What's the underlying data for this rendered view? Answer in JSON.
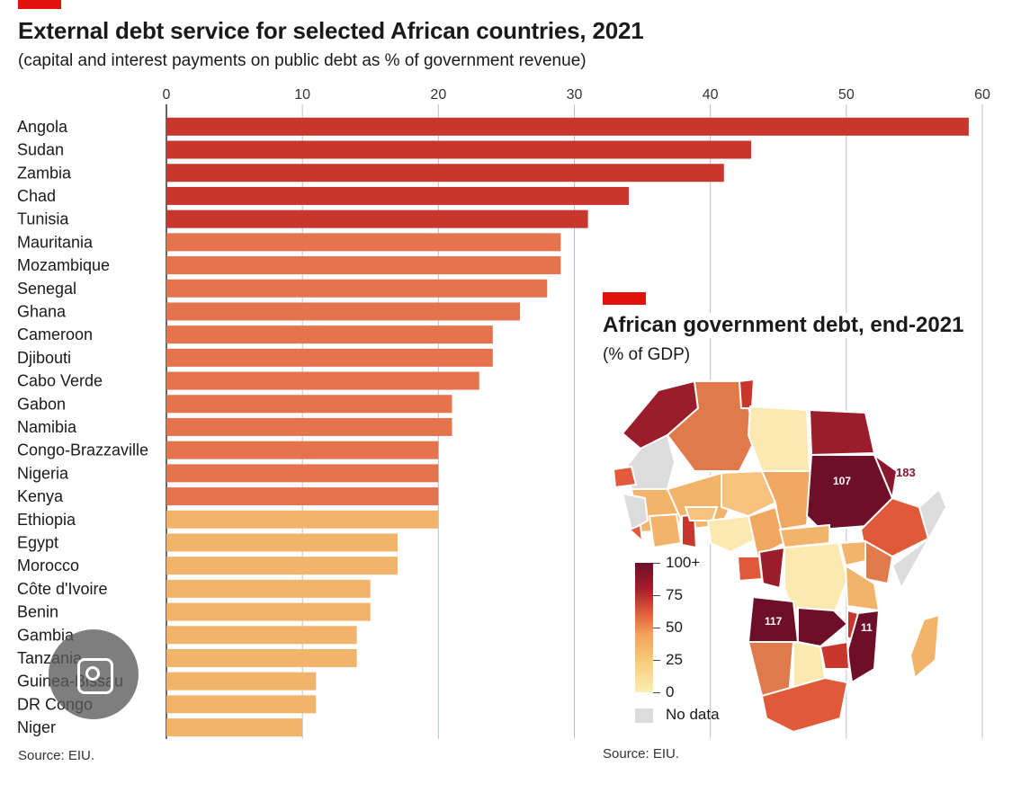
{
  "colors": {
    "tag": "#e3120b",
    "bar_high": "#c8372d",
    "bar_mid": "#e5734d",
    "bar_low": "#f2b46a",
    "grid": "#b9c3cf",
    "nodata": "#dcdcdc"
  },
  "chart_data": {
    "type": "bar",
    "orientation": "horizontal",
    "title": "External debt service for selected African countries, 2021",
    "subtitle": "(capital and interest payments on public debt as % of government revenue)",
    "xlim": [
      0,
      60
    ],
    "xticks": [
      "0",
      "10",
      "20",
      "30",
      "40",
      "50",
      "60"
    ],
    "grid": true,
    "categories": [
      "Angola",
      "Sudan",
      "Zambia",
      "Chad",
      "Tunisia",
      "Mauritania",
      "Mozambique",
      "Senegal",
      "Ghana",
      "Cameroon",
      "Djibouti",
      "Cabo Verde",
      "Gabon",
      "Namibia",
      "Congo-Brazzaville",
      "Nigeria",
      "Kenya",
      "Ethiopia",
      "Egypt",
      "Morocco",
      "Côte d'Ivoire",
      "Benin",
      "Gambia",
      "Tanzania",
      "Guinea-Bissau",
      "DR Congo",
      "Niger"
    ],
    "values": [
      59,
      43,
      41,
      34,
      31,
      29,
      29,
      28,
      26,
      24,
      24,
      23,
      21,
      21,
      20,
      20,
      20,
      20,
      17,
      17,
      15,
      15,
      14,
      14,
      11,
      11,
      10
    ],
    "source": "Source: EIU."
  },
  "map": {
    "title": "African government debt, end-2021",
    "subtitle": "(% of GDP)",
    "labels": [
      "107",
      "183",
      "117",
      "11"
    ],
    "legend": {
      "ticks": [
        "100+",
        "75",
        "50",
        "25",
        "0"
      ],
      "nodata_label": "No data"
    },
    "source": "Source: EIU."
  },
  "overlay": {
    "icon": "lens-icon"
  }
}
